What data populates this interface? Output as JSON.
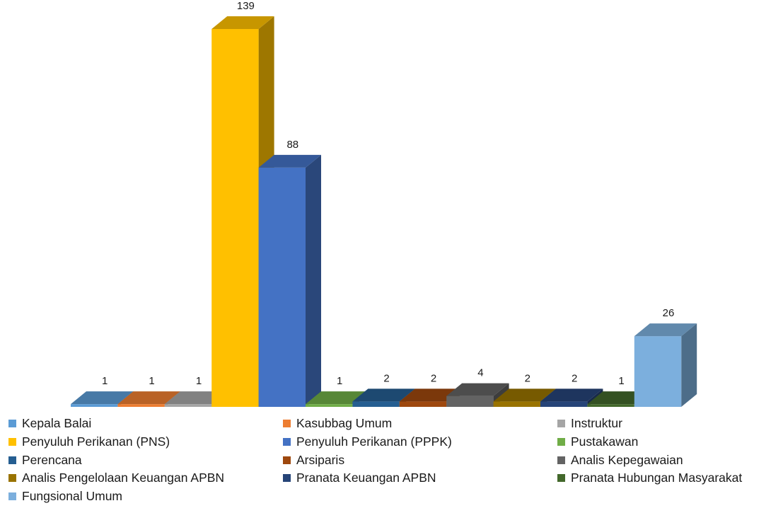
{
  "chart_data": {
    "type": "bar",
    "three_d": true,
    "legend_position": "bottom",
    "grid": false,
    "categories": [
      "Kepala Balai",
      "Kasubbag Umum",
      "Instruktur",
      "Penyuluh Perikanan (PNS)",
      "Penyuluh Perikanan  (PPPK)",
      "Pustakawan",
      "Perencana",
      "Arsiparis",
      "Analis Kepegawaian",
      "Analis Pengelolaan Keuangan APBN",
      "Pranata Keuangan APBN",
      "Pranata Hubungan Masyarakat",
      "Fungsional Umum"
    ],
    "values": [
      1,
      1,
      1,
      139,
      88,
      1,
      2,
      2,
      4,
      2,
      2,
      1,
      26
    ],
    "value_labels": [
      "1",
      "1",
      "1",
      "139",
      "88",
      "1",
      "2",
      "2",
      "4",
      "2",
      "2",
      "1",
      "26"
    ],
    "colors": [
      "#5B9BD5",
      "#ED7D31",
      "#A5A5A5",
      "#FFC000",
      "#4472C4",
      "#70AD47",
      "#255E91",
      "#9E480E",
      "#636363",
      "#997300",
      "#264478",
      "#43682B",
      "#7CAFDD"
    ],
    "ylim": [
      0,
      139
    ]
  }
}
